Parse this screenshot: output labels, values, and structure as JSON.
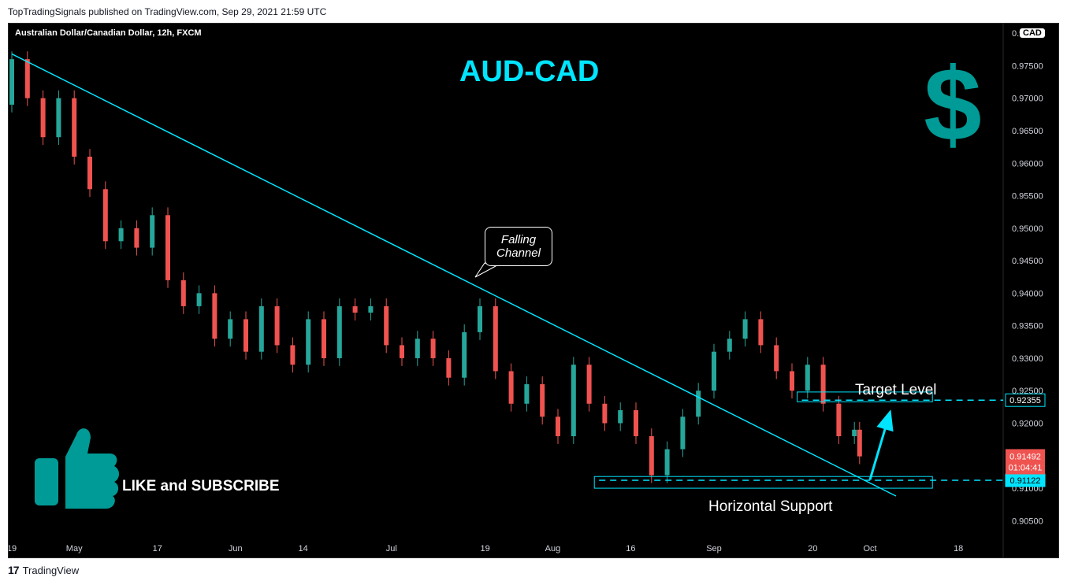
{
  "publisher_line": "TopTradingSignals published on TradingView.com, Sep 29, 2021 21:59 UTC",
  "footer": {
    "logo_mark": "17",
    "brand": "TradingView"
  },
  "colors": {
    "background": "#000000",
    "up_candle": "#26a69a",
    "down_candle": "#ef5350",
    "annotation": "#00e5ff",
    "axis_text": "#d1d4dc",
    "icon": "#009b96"
  },
  "icons": {
    "currency": "dollar-sign-icon",
    "like": "thumbs-up-icon"
  },
  "chart_data": {
    "type": "candlestick",
    "symbol_header": "Australian Dollar/Canadian Dollar, 12h, FXCM",
    "currency_badge": "CAD",
    "title": "AUD-CAD",
    "y_axis": {
      "ylim": [
        0.9025,
        0.9805
      ],
      "ticks": [
        "0.97500",
        "0.97000",
        "0.96500",
        "0.96000",
        "0.95500",
        "0.95000",
        "0.94500",
        "0.94000",
        "0.93500",
        "0.93000",
        "0.92500",
        "0.92000",
        "0.91500",
        "0.91000",
        "0.90500"
      ],
      "partial_top_label": "0.9"
    },
    "x_axis": {
      "ticks": [
        "19",
        "May",
        "17",
        "Jun",
        "14",
        "Jul",
        "19",
        "Aug",
        "16",
        "Sep",
        "20",
        "Oct",
        "18"
      ],
      "xlim": [
        "2021-04-19",
        "2021-10-26"
      ]
    },
    "price_labels": {
      "target": "0.92355",
      "support": "0.91122",
      "current": "0.91492",
      "countdown": "01:04:41"
    },
    "annotations": {
      "channel_callout": [
        "Falling",
        "Channel"
      ],
      "target_label": "Target Level",
      "support_label": "Horizontal Support",
      "cta": "LIKE and SUBSCRIBE"
    },
    "trendline": [
      {
        "date": "2021-04-19",
        "price": 0.9768
      },
      {
        "date": "2021-10-06",
        "price": 0.9088
      }
    ],
    "target_zone": {
      "from": "2021-09-17",
      "to": "2021-10-13",
      "low": 0.9233,
      "high": 0.9248,
      "level": 0.92355
    },
    "support_zone": {
      "from": "2021-08-09",
      "to": "2021-10-13",
      "low": 0.91,
      "high": 0.9118,
      "level": 0.91122
    },
    "projection_arrow": [
      {
        "date": "2021-10-01",
        "price": 0.9113
      },
      {
        "date": "2021-10-05",
        "price": 0.9221
      }
    ],
    "candles": [
      [
        "2021-04-19",
        0.969,
        0.976
      ],
      [
        "2021-04-22",
        0.976,
        0.97
      ],
      [
        "2021-04-25",
        0.97,
        0.964
      ],
      [
        "2021-04-28",
        0.964,
        0.97
      ],
      [
        "2021-05-01",
        0.97,
        0.961
      ],
      [
        "2021-05-04",
        0.961,
        0.956
      ],
      [
        "2021-05-07",
        0.956,
        0.948
      ],
      [
        "2021-05-10",
        0.948,
        0.95
      ],
      [
        "2021-05-13",
        0.95,
        0.947
      ],
      [
        "2021-05-16",
        0.947,
        0.952
      ],
      [
        "2021-05-19",
        0.952,
        0.942
      ],
      [
        "2021-05-22",
        0.942,
        0.938
      ],
      [
        "2021-05-25",
        0.938,
        0.94
      ],
      [
        "2021-05-28",
        0.94,
        0.933
      ],
      [
        "2021-05-31",
        0.933,
        0.936
      ],
      [
        "2021-06-03",
        0.936,
        0.931
      ],
      [
        "2021-06-06",
        0.931,
        0.938
      ],
      [
        "2021-06-09",
        0.938,
        0.932
      ],
      [
        "2021-06-12",
        0.932,
        0.929
      ],
      [
        "2021-06-15",
        0.929,
        0.936
      ],
      [
        "2021-06-18",
        0.936,
        0.93
      ],
      [
        "2021-06-21",
        0.93,
        0.938
      ],
      [
        "2021-06-24",
        0.938,
        0.937
      ],
      [
        "2021-06-27",
        0.937,
        0.938
      ],
      [
        "2021-06-30",
        0.938,
        0.932
      ],
      [
        "2021-07-03",
        0.932,
        0.93
      ],
      [
        "2021-07-06",
        0.93,
        0.933
      ],
      [
        "2021-07-09",
        0.933,
        0.93
      ],
      [
        "2021-07-12",
        0.93,
        0.927
      ],
      [
        "2021-07-15",
        0.927,
        0.934
      ],
      [
        "2021-07-18",
        0.934,
        0.938
      ],
      [
        "2021-07-21",
        0.938,
        0.928
      ],
      [
        "2021-07-24",
        0.928,
        0.923
      ],
      [
        "2021-07-27",
        0.923,
        0.926
      ],
      [
        "2021-07-30",
        0.926,
        0.921
      ],
      [
        "2021-08-02",
        0.921,
        0.918
      ],
      [
        "2021-08-05",
        0.918,
        0.929
      ],
      [
        "2021-08-08",
        0.929,
        0.923
      ],
      [
        "2021-08-11",
        0.923,
        0.92
      ],
      [
        "2021-08-14",
        0.92,
        0.922
      ],
      [
        "2021-08-17",
        0.922,
        0.918
      ],
      [
        "2021-08-20",
        0.918,
        0.912
      ],
      [
        "2021-08-23",
        0.912,
        0.916
      ],
      [
        "2021-08-26",
        0.916,
        0.921
      ],
      [
        "2021-08-29",
        0.921,
        0.925
      ],
      [
        "2021-09-01",
        0.925,
        0.931
      ],
      [
        "2021-09-04",
        0.931,
        0.933
      ],
      [
        "2021-09-07",
        0.933,
        0.936
      ],
      [
        "2021-09-10",
        0.936,
        0.932
      ],
      [
        "2021-09-13",
        0.932,
        0.928
      ],
      [
        "2021-09-16",
        0.928,
        0.925
      ],
      [
        "2021-09-19",
        0.925,
        0.929
      ],
      [
        "2021-09-22",
        0.929,
        0.923
      ],
      [
        "2021-09-25",
        0.923,
        0.918
      ],
      [
        "2021-09-28",
        0.918,
        0.919
      ],
      [
        "2021-09-29",
        0.919,
        0.9149
      ]
    ]
  }
}
